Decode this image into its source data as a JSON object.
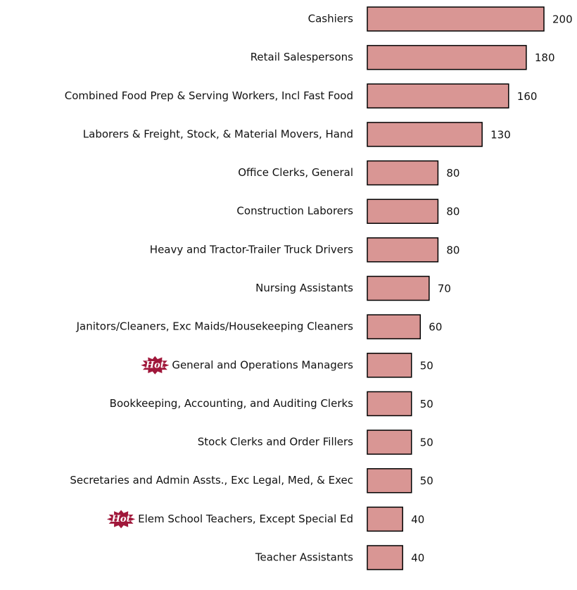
{
  "chart_data": {
    "type": "bar",
    "orientation": "horizontal",
    "categories": [
      "Cashiers",
      "Retail Salespersons",
      "Combined Food Prep & Serving Workers, Incl Fast Food",
      "Laborers & Freight, Stock, & Material Movers, Hand",
      "Office Clerks, General",
      "Construction Laborers",
      "Heavy and Tractor-Trailer Truck Drivers",
      "Nursing Assistants",
      "Janitors/Cleaners, Exc Maids/Housekeeping Cleaners",
      "General and Operations Managers",
      "Bookkeeping, Accounting, and Auditing Clerks",
      "Stock Clerks and Order Fillers",
      "Secretaries and Admin Assts., Exc Legal, Med, & Exec",
      "Elem School Teachers, Except Special Ed",
      "Teacher Assistants"
    ],
    "values": [
      200,
      180,
      160,
      130,
      80,
      80,
      80,
      70,
      60,
      50,
      50,
      50,
      50,
      40,
      40
    ],
    "color": "#d99694",
    "annotations": [
      {
        "text": "Hot",
        "category": "General and Operations Managers"
      },
      {
        "text": "Hot",
        "category": "Elem School Teachers, Except Special Ed"
      }
    ]
  }
}
